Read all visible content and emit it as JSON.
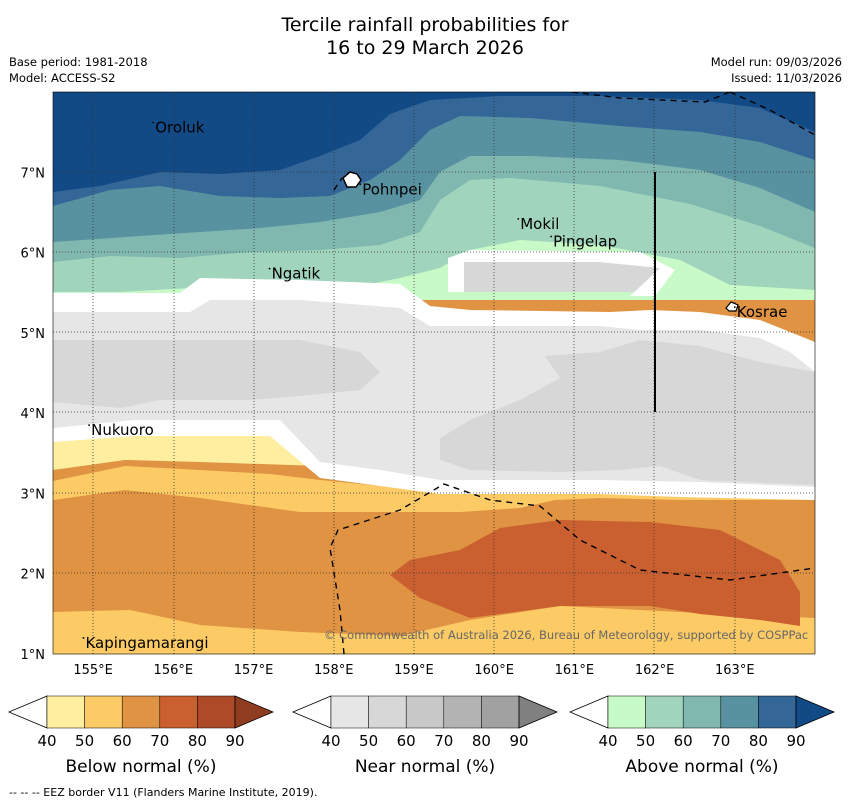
{
  "title": {
    "line1": "Tercile rainfall probabilities for",
    "line2": "16 to 29 March 2026"
  },
  "meta": {
    "base_period": "Base period: 1981-2018",
    "model": "Model: ACCESS-S2",
    "model_run": "Model run: 09/03/2026",
    "issued": "Issued: 11/03/2026"
  },
  "map": {
    "lon_range": [
      154.5,
      164.0
    ],
    "lat_range": [
      1.0,
      8.0
    ],
    "lat_ticks": [
      "1°N",
      "2°N",
      "3°N",
      "4°N",
      "5°N",
      "6°N",
      "7°N"
    ],
    "lon_ticks": [
      "155°E",
      "156°E",
      "157°E",
      "158°E",
      "159°E",
      "160°E",
      "161°E",
      "162°E",
      "163°E"
    ],
    "places": [
      {
        "name": "Oroluk",
        "lon": 155.75,
        "lat": 7.62
      },
      {
        "name": "Pohnpei",
        "lon": 158.33,
        "lat": 6.85
      },
      {
        "name": "Mokil",
        "lon": 160.3,
        "lat": 6.42
      },
      {
        "name": "Pingelap",
        "lon": 160.71,
        "lat": 6.2
      },
      {
        "name": "Ngatik",
        "lon": 157.2,
        "lat": 5.8
      },
      {
        "name": "Kosrae",
        "lon": 163.0,
        "lat": 5.32
      },
      {
        "name": "Nukuoro",
        "lon": 154.95,
        "lat": 3.85
      },
      {
        "name": "Kapingamarangi",
        "lon": 154.88,
        "lat": 1.2
      }
    ],
    "copyright": "© Commonwealth of Australia 2026, Bureau of Meteorology, supported by COSPPac"
  },
  "colorbars": [
    {
      "title": "Below normal (%)",
      "ticks": [
        "40",
        "50",
        "60",
        "70",
        "80",
        "90"
      ],
      "colors": [
        "#ffeea0",
        "#fdcb66",
        "#e09443",
        "#ca6030",
        "#ad4b28",
        "#903c20"
      ]
    },
    {
      "title": "Near normal (%)",
      "ticks": [
        "40",
        "50",
        "60",
        "70",
        "80",
        "90"
      ],
      "colors": [
        "#e6e6e6",
        "#d7d7d7",
        "#c8c8c8",
        "#b3b3b3",
        "#a1a1a1",
        "#808080"
      ]
    },
    {
      "title": "Above normal (%)",
      "ticks": [
        "40",
        "50",
        "60",
        "70",
        "80",
        "90"
      ],
      "colors": [
        "#c8fac8",
        "#a0d4bc",
        "#80b8b0",
        "#5892a0",
        "#346698",
        "#124a86"
      ]
    }
  ],
  "footer": "--  --  -- EEZ border V11 (Flanders Marine Institute, 2019)."
}
